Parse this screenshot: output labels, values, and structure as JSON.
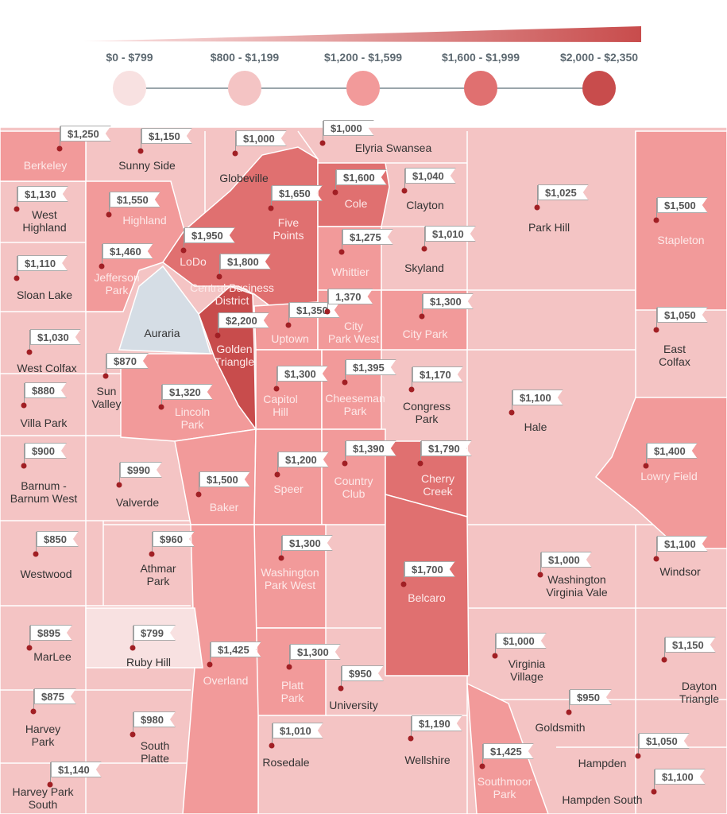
{
  "legend": {
    "tiers": [
      {
        "label": "$0 - $799",
        "color": "#f8e1e1"
      },
      {
        "label": "$800 - $1,199",
        "color": "#f4c4c4"
      },
      {
        "label": "$1,200 - $1,599",
        "color": "#f29a9a"
      },
      {
        "label": "$1,600 - $1,999",
        "color": "#e07070"
      },
      {
        "label": "$2,000 - $2,350",
        "color": "#c84c4c"
      }
    ]
  },
  "no_data_color": "#d5dde5",
  "neighborhoods": [
    {
      "name": [
        "Berkeley"
      ],
      "price": "$1,250",
      "tier": 3
    },
    {
      "name": [
        "Sunny Side"
      ],
      "price": "$1,150",
      "tier": 2
    },
    {
      "name": [
        "Globeville"
      ],
      "price": "$1,000",
      "tier": 2
    },
    {
      "name": [
        "Elyria Swansea"
      ],
      "price": "$1,000",
      "tier": 2
    },
    {
      "name": [
        "Cole"
      ],
      "price": "$1,600",
      "tier": 4
    },
    {
      "name": [
        "Clayton"
      ],
      "price": "$1,040",
      "tier": 2
    },
    {
      "name": [
        "Park Hill"
      ],
      "price": "$1,025",
      "tier": 2
    },
    {
      "name": [
        "Stapleton"
      ],
      "price": "$1,500",
      "tier": 3
    },
    {
      "name": [
        "West",
        "Highland"
      ],
      "price": "$1,130",
      "tier": 2
    },
    {
      "name": [
        "Highland"
      ],
      "price": "$1,550",
      "tier": 3
    },
    {
      "name": [
        "Five",
        "Points"
      ],
      "price": "$1,650",
      "tier": 4
    },
    {
      "name": [
        "LoDo"
      ],
      "price": "$1,950",
      "tier": 4
    },
    {
      "name": [
        "Whittier"
      ],
      "price": "$1,275",
      "tier": 3
    },
    {
      "name": [
        "Skyland"
      ],
      "price": "$1,010",
      "tier": 2
    },
    {
      "name": [
        "Jefferson",
        "Park"
      ],
      "price": "$1,460",
      "tier": 3
    },
    {
      "name": [
        "Central Business",
        "District"
      ],
      "price": "$1,800",
      "tier": 4
    },
    {
      "name": [
        "Sloan Lake"
      ],
      "price": "$1,110",
      "tier": 2
    },
    {
      "name": [
        "Auraria"
      ],
      "price": null,
      "tier": 0
    },
    {
      "name": [
        "Golden",
        "Triangle"
      ],
      "price": "$2,200",
      "tier": 5
    },
    {
      "name": [
        "Uptown"
      ],
      "price": "$1,350",
      "tier": 3
    },
    {
      "name": [
        "City",
        "Park West"
      ],
      "price": "1,370",
      "tier": 3
    },
    {
      "name": [
        "City Park"
      ],
      "price": "$1,300",
      "tier": 3
    },
    {
      "name": [
        "East",
        "Colfax"
      ],
      "price": "$1,050",
      "tier": 2
    },
    {
      "name": [
        "West Colfax"
      ],
      "price": "$1,030",
      "tier": 2
    },
    {
      "name": [
        "Sun",
        "Valley"
      ],
      "price": "$870",
      "tier": 2
    },
    {
      "name": [
        "Lincoln",
        "Park"
      ],
      "price": "$1,320",
      "tier": 3
    },
    {
      "name": [
        "Capitol",
        "Hill"
      ],
      "price": "$1,300",
      "tier": 3
    },
    {
      "name": [
        "Cheeseman",
        "Park"
      ],
      "price": "$1,395",
      "tier": 3
    },
    {
      "name": [
        "Congress",
        "Park"
      ],
      "price": "$1,170",
      "tier": 2
    },
    {
      "name": [
        "Hale"
      ],
      "price": "$1,100",
      "tier": 2
    },
    {
      "name": [
        "Villa Park"
      ],
      "price": "$880",
      "tier": 2
    },
    {
      "name": [
        "Barnum -",
        "Barnum West"
      ],
      "price": "$900",
      "tier": 2
    },
    {
      "name": [
        "Valverde"
      ],
      "price": "$990",
      "tier": 2
    },
    {
      "name": [
        "Baker"
      ],
      "price": "$1,500",
      "tier": 3
    },
    {
      "name": [
        "Speer"
      ],
      "price": "$1,200",
      "tier": 3
    },
    {
      "name": [
        "Country",
        "Club"
      ],
      "price": "$1,390",
      "tier": 3
    },
    {
      "name": [
        "Cherry",
        "Creek"
      ],
      "price": "$1,790",
      "tier": 4
    },
    {
      "name": [
        "Lowry Field"
      ],
      "price": "$1,400",
      "tier": 3
    },
    {
      "name": [
        "Westwood"
      ],
      "price": "$850",
      "tier": 2
    },
    {
      "name": [
        "Athmar",
        "Park"
      ],
      "price": "$960",
      "tier": 2
    },
    {
      "name": [
        "Washington",
        "Park West"
      ],
      "price": "$1,300",
      "tier": 3
    },
    {
      "name": [
        "Belcaro"
      ],
      "price": "$1,700",
      "tier": 4
    },
    {
      "name": [
        "Washington",
        "Virginia Vale"
      ],
      "price": "$1,000",
      "tier": 2
    },
    {
      "name": [
        "Windsor"
      ],
      "price": "$1,100",
      "tier": 2
    },
    {
      "name": [
        "MarLee"
      ],
      "price": "$895",
      "tier": 2
    },
    {
      "name": [
        "Ruby Hill"
      ],
      "price": "$799",
      "tier": 1
    },
    {
      "name": [
        "Overland"
      ],
      "price": "$1,425",
      "tier": 3
    },
    {
      "name": [
        "Platt",
        "Park"
      ],
      "price": "$1,300",
      "tier": 3
    },
    {
      "name": [
        "University"
      ],
      "price": "$950",
      "tier": 2
    },
    {
      "name": [
        "Virginia",
        "Village"
      ],
      "price": "$1,000",
      "tier": 2
    },
    {
      "name": [
        "Dayton",
        "Triangle"
      ],
      "price": "$1,150",
      "tier": 2
    },
    {
      "name": [
        "Goldsmith"
      ],
      "price": "$950",
      "tier": 2
    },
    {
      "name": [
        "Harvey",
        "Park"
      ],
      "price": "$875",
      "tier": 2
    },
    {
      "name": [
        "South",
        "Platte"
      ],
      "price": "$980",
      "tier": 2
    },
    {
      "name": [
        "Rosedale"
      ],
      "price": "$1,010",
      "tier": 2
    },
    {
      "name": [
        "Wellshire"
      ],
      "price": "$1,190",
      "tier": 2
    },
    {
      "name": [
        "Southmoor",
        "Park"
      ],
      "price": "$1,425",
      "tier": 3
    },
    {
      "name": [
        "Hampden"
      ],
      "price": "$1,050",
      "tier": 2
    },
    {
      "name": [
        "Harvey Park",
        "South"
      ],
      "price": "$1,140",
      "tier": 2
    },
    {
      "name": [
        "Hampden South"
      ],
      "price": "$1,100",
      "tier": 2
    }
  ]
}
